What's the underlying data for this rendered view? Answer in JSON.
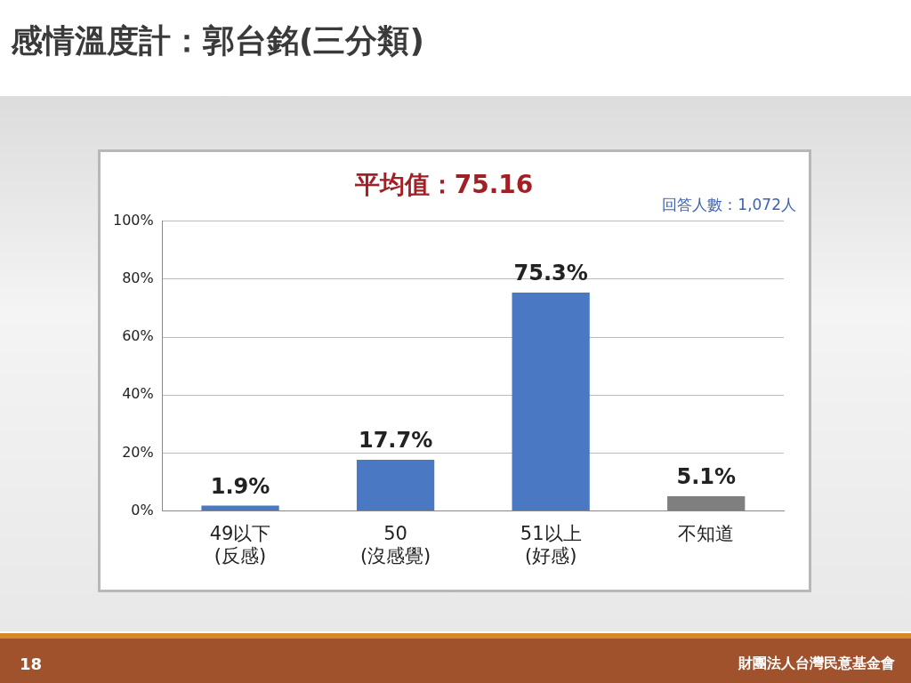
{
  "chart_data": {
    "type": "bar",
    "title": "感情溫度計：郭台銘(三分類)",
    "subtitle": "平均值：75.16",
    "categories": [
      "49以下\n(反感)",
      "50\n(沒感覺)",
      "51以上\n(好感)",
      "不知道"
    ],
    "values": [
      1.9,
      17.7,
      75.3,
      5.1
    ],
    "colors": [
      "#4a78c2",
      "#4a78c2",
      "#4a78c2",
      "#7f7f7f"
    ],
    "value_labels": [
      "1.9%",
      "17.7%",
      "75.3%",
      "5.1%"
    ],
    "ylim": [
      0,
      100
    ],
    "yticks": [
      {
        "value": 0,
        "label": "0%"
      },
      {
        "value": 20,
        "label": "20%"
      },
      {
        "value": 40,
        "label": "40%"
      },
      {
        "value": 60,
        "label": "60%"
      },
      {
        "value": 80,
        "label": "80%"
      },
      {
        "value": 100,
        "label": "100%"
      }
    ],
    "grid": "y",
    "legend": false,
    "annotations": [
      "回答人數：1,072人",
      "18",
      "財團法人台灣民意基金會"
    ]
  }
}
